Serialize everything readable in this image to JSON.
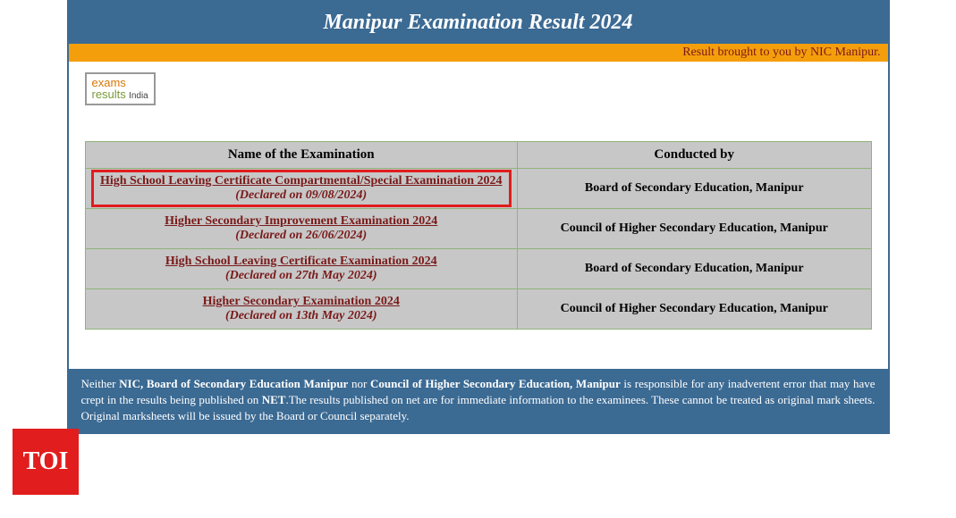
{
  "header": {
    "title": "Manipur Examination Result 2024",
    "subtitle": "Result brought to you by NIC Manipur."
  },
  "logo": {
    "line1a": "exams",
    "line1b": "results",
    "suffix": "India"
  },
  "table": {
    "col1_header": "Name of the Examination",
    "col2_header": "Conducted by",
    "rows": [
      {
        "name": "High School Leaving Certificate Compartmental/Special Examination 2024",
        "declared": "(Declared on 09/08/2024)",
        "conducted": "Board of Secondary Education, Manipur",
        "highlighted": true
      },
      {
        "name": "Higher Secondary Improvement Examination 2024",
        "declared": "(Declared on 26/06/2024)",
        "conducted": "Council of Higher Secondary Education, Manipur",
        "highlighted": false
      },
      {
        "name": "High School Leaving Certificate Examination 2024",
        "declared": "(Declared on 27th May 2024)",
        "conducted": "Board of Secondary Education, Manipur",
        "highlighted": false
      },
      {
        "name": "Higher Secondary Examination 2024",
        "declared": "(Declared on 13th May 2024)",
        "conducted": "Council of Higher Secondary Education, Manipur",
        "highlighted": false
      }
    ]
  },
  "disclaimer": {
    "prefix": "Neither ",
    "b1": "NIC, Board of Secondary Education Manipur",
    "mid1": " nor ",
    "b2": "Council of Higher Secondary Education, Manipur",
    "rest": " is responsible for any inadvertent error that may have crept in the results being published on ",
    "b3": "NET",
    "rest2": ".The results published on net are for immediate information to the examinees. These cannot be treated as original mark sheets. Original marksheets will be issued by the Board or Council separately."
  },
  "toi": {
    "label": "TOI"
  },
  "colors": {
    "header_bg": "#3b6a93",
    "orange_bar": "#f59e0b",
    "link_color": "#7a1a1a",
    "cell_bg": "#c7c7c7",
    "cell_border": "#8fb37a",
    "highlight_border": "#e11d1d",
    "toi_bg": "#e11d1d"
  }
}
